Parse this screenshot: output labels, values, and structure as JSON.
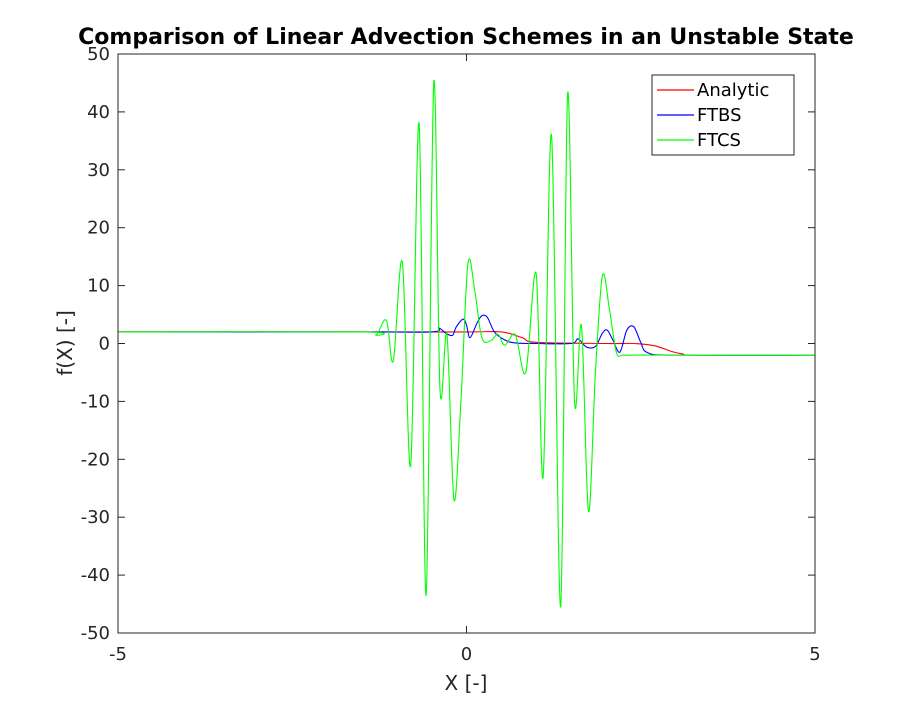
{
  "chart_data": {
    "type": "line",
    "title": "Comparison of Linear Advection Schemes in an Unstable State",
    "xlabel": "X [-]",
    "ylabel": "f(X) [-]",
    "xlim": [
      -5,
      5
    ],
    "ylim": [
      -50,
      50
    ],
    "x_ticks": [
      -5,
      0,
      5
    ],
    "y_ticks": [
      50,
      40,
      30,
      20,
      10,
      0,
      -10,
      -20,
      -30,
      -40,
      -50
    ],
    "x_tick_labels": [
      "-5",
      "0",
      "5"
    ],
    "y_tick_labels": [
      "50",
      "40",
      "30",
      "20",
      "10",
      "0",
      "-10",
      "-20",
      "-30",
      "-40",
      "-50"
    ],
    "grid": false,
    "legend_position": "top-right",
    "series": [
      {
        "name": "Analytic",
        "color": "#ff0000",
        "x": [
          -5,
          -1.5,
          0,
          0.5,
          0.8,
          1.0,
          2.0,
          2.4,
          2.7,
          2.95,
          3.1,
          3.3,
          5
        ],
        "y": [
          2,
          2,
          2,
          2,
          1.0,
          0.2,
          0,
          0,
          -0.4,
          -1.4,
          -1.8,
          -2,
          -2
        ]
      },
      {
        "name": "FTBS",
        "color": "#0000ff",
        "x": [
          -5,
          -1.6,
          -0.5,
          -0.4,
          -0.3,
          -0.2,
          -0.15,
          -0.05,
          0.0,
          0.05,
          0.15,
          0.22,
          0.3,
          0.4,
          0.55,
          0.7,
          1.0,
          1.5,
          1.6,
          1.72,
          1.85,
          1.95,
          2.02,
          2.1,
          2.2,
          2.3,
          2.4,
          2.5,
          2.6,
          3.0,
          5
        ],
        "y": [
          2,
          2,
          2,
          2.7,
          1.8,
          1.4,
          2.8,
          4.2,
          3.2,
          1.0,
          3.5,
          4.8,
          4.5,
          2.0,
          0.6,
          0.1,
          0,
          0,
          0.8,
          -0.6,
          -0.5,
          1.8,
          2.3,
          0.6,
          -1.5,
          2.3,
          2.9,
          0.2,
          -1.6,
          -2,
          -2
        ]
      },
      {
        "name": "FTCS",
        "color": "#00ff00",
        "x": [
          -5,
          -1.5,
          -1.3,
          -1.15,
          -1.05,
          -0.92,
          -0.8,
          -0.68,
          -0.58,
          -0.47,
          -0.38,
          -0.28,
          -0.18,
          -0.08,
          0.02,
          0.12,
          0.22,
          0.35,
          0.45,
          0.55,
          0.7,
          0.85,
          1.0,
          1.1,
          1.22,
          1.35,
          1.45,
          1.55,
          1.65,
          1.75,
          1.85,
          1.95,
          2.05,
          2.15,
          2.25,
          2.4,
          2.55,
          2.7,
          2.9,
          5
        ],
        "y": [
          2,
          2,
          1.5,
          4.0,
          -3.0,
          14.0,
          -21.0,
          38.0,
          -43.5,
          45.0,
          -8.0,
          1.5,
          -27.0,
          -10.0,
          13.7,
          9.0,
          1.0,
          0.5,
          1.6,
          -0.3,
          1.5,
          -5.0,
          12.0,
          -23.0,
          36.0,
          -45.5,
          43.0,
          -10.0,
          3.0,
          -29.0,
          -5.0,
          11.7,
          6.0,
          -1.5,
          -2.0,
          -2.0,
          -2.0,
          -2.0,
          -2.0,
          -2.0
        ]
      }
    ]
  }
}
